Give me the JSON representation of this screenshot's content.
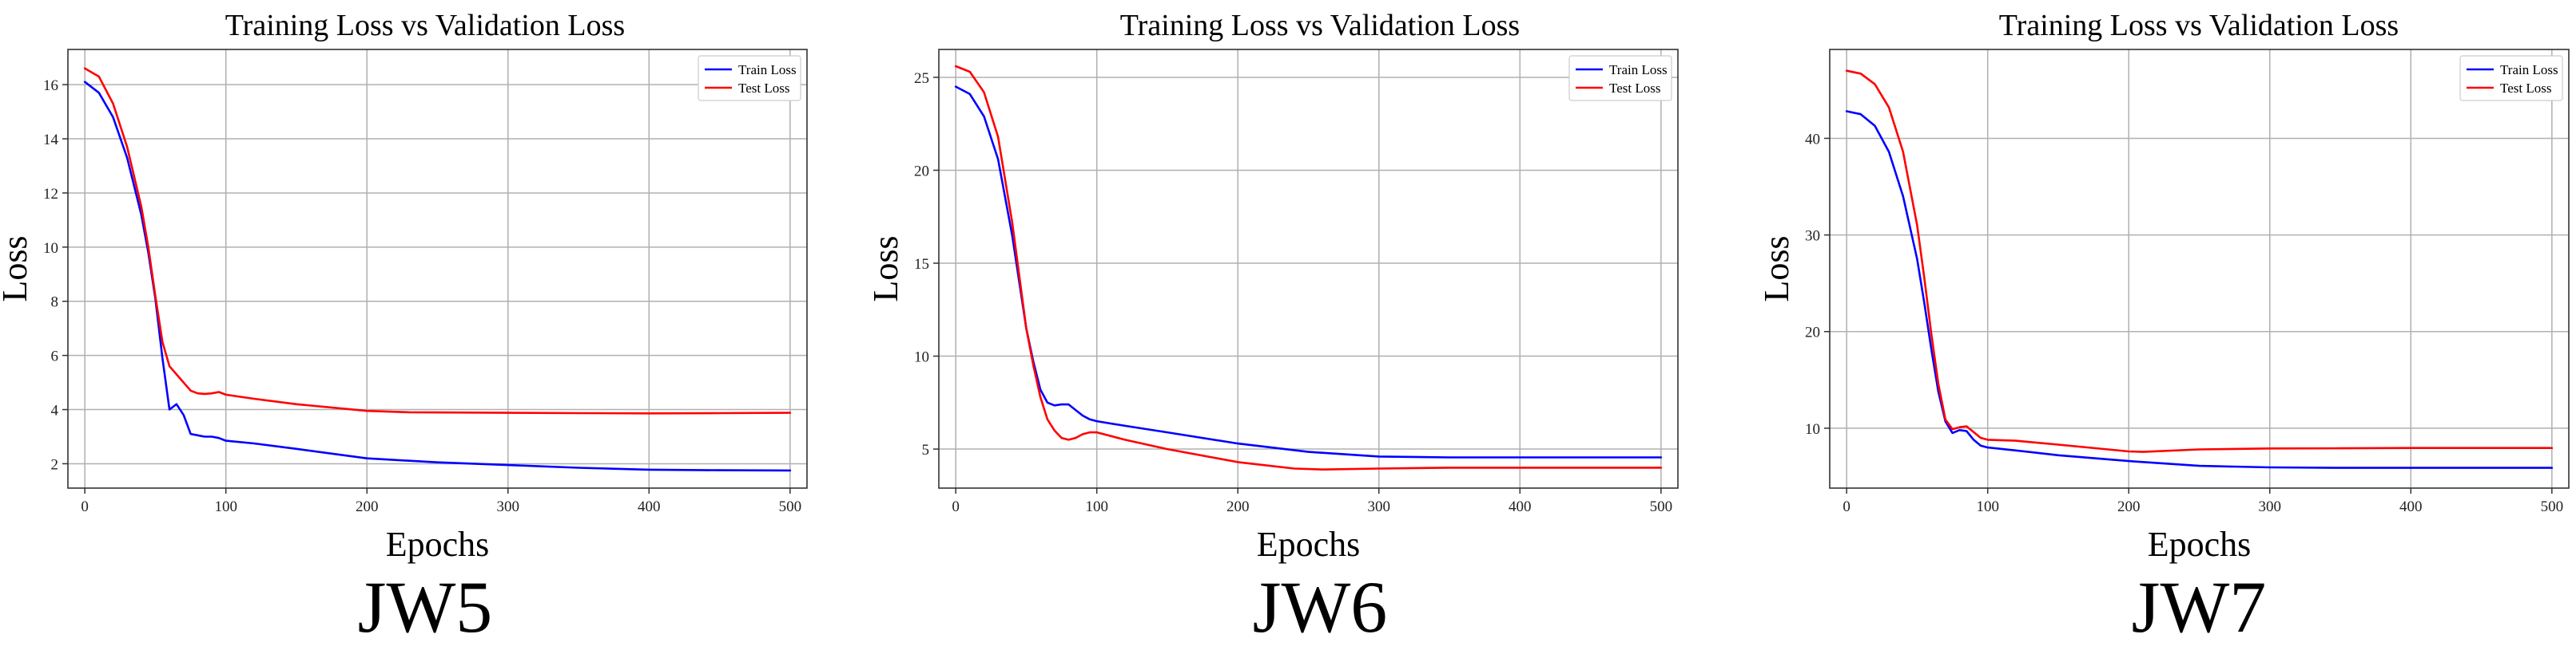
{
  "chart_data": [
    {
      "type": "line",
      "title": "Training Loss vs Validation Loss",
      "xlabel": "Epochs",
      "ylabel": "Loss",
      "caption": "JW5",
      "xlim": [
        -12,
        512
      ],
      "ylim": [
        1.1,
        17.3
      ],
      "xticks": [
        0,
        100,
        200,
        300,
        400,
        500
      ],
      "yticks": [
        2,
        4,
        6,
        8,
        10,
        12,
        14,
        16
      ],
      "grid": true,
      "legend_position": "top-right",
      "series": [
        {
          "name": "Train Loss",
          "color": "#0000ff",
          "x": [
            0,
            10,
            20,
            30,
            40,
            45,
            50,
            55,
            60,
            65,
            70,
            75,
            80,
            85,
            90,
            95,
            100,
            120,
            150,
            200,
            250,
            300,
            350,
            400,
            450,
            500
          ],
          "y": [
            16.1,
            15.7,
            14.8,
            13.3,
            11.2,
            9.8,
            8.1,
            5.9,
            4.0,
            4.2,
            3.8,
            3.1,
            3.05,
            3.0,
            3.0,
            2.95,
            2.85,
            2.75,
            2.55,
            2.2,
            2.05,
            1.95,
            1.85,
            1.78,
            1.76,
            1.75
          ]
        },
        {
          "name": "Test Loss",
          "color": "#ff0000",
          "x": [
            0,
            10,
            20,
            30,
            40,
            45,
            50,
            55,
            60,
            65,
            70,
            75,
            80,
            85,
            90,
            95,
            100,
            120,
            150,
            200,
            230,
            300,
            350,
            400,
            450,
            500
          ],
          "y": [
            16.6,
            16.3,
            15.3,
            13.7,
            11.5,
            10.0,
            8.2,
            6.5,
            5.6,
            5.3,
            5.0,
            4.7,
            4.6,
            4.58,
            4.6,
            4.65,
            4.55,
            4.4,
            4.2,
            3.95,
            3.9,
            3.88,
            3.87,
            3.86,
            3.87,
            3.88
          ]
        }
      ]
    },
    {
      "type": "line",
      "title": "Training Loss vs Validation Loss",
      "xlabel": "Epochs",
      "ylabel": "Loss",
      "caption": "JW6",
      "xlim": [
        -12,
        512
      ],
      "ylim": [
        2.9,
        26.5
      ],
      "xticks": [
        0,
        100,
        200,
        300,
        400,
        500
      ],
      "yticks": [
        5,
        10,
        15,
        20,
        25
      ],
      "grid": true,
      "legend_position": "top-right",
      "series": [
        {
          "name": "Train Loss",
          "color": "#0000ff",
          "x": [
            0,
            10,
            20,
            30,
            40,
            50,
            55,
            60,
            65,
            70,
            75,
            80,
            85,
            90,
            95,
            100,
            120,
            150,
            200,
            250,
            300,
            350,
            400,
            450,
            500
          ],
          "y": [
            24.5,
            24.1,
            22.9,
            20.6,
            16.5,
            11.5,
            9.7,
            8.2,
            7.5,
            7.35,
            7.4,
            7.4,
            7.1,
            6.8,
            6.6,
            6.5,
            6.25,
            5.9,
            5.3,
            4.85,
            4.6,
            4.55,
            4.55,
            4.55,
            4.55
          ]
        },
        {
          "name": "Test Loss",
          "color": "#ff0000",
          "x": [
            0,
            10,
            20,
            30,
            40,
            50,
            55,
            60,
            65,
            70,
            75,
            80,
            85,
            90,
            95,
            100,
            120,
            150,
            200,
            240,
            260,
            300,
            350,
            400,
            450,
            500
          ],
          "y": [
            25.6,
            25.3,
            24.2,
            21.8,
            17.2,
            11.5,
            9.5,
            7.8,
            6.6,
            6.0,
            5.6,
            5.5,
            5.6,
            5.8,
            5.9,
            5.9,
            5.5,
            5.0,
            4.3,
            3.95,
            3.9,
            3.95,
            4.0,
            4.0,
            4.0,
            4.0
          ]
        }
      ]
    },
    {
      "type": "line",
      "title": "Training Loss vs Validation Loss",
      "xlabel": "Epochs",
      "ylabel": "Loss",
      "caption": "JW7",
      "xlim": [
        -12,
        512
      ],
      "ylim": [
        3.8,
        49.2
      ],
      "xticks": [
        0,
        100,
        200,
        300,
        400,
        500
      ],
      "yticks": [
        10,
        20,
        30,
        40
      ],
      "grid": true,
      "legend_position": "top-right",
      "series": [
        {
          "name": "Train Loss",
          "color": "#0000ff",
          "x": [
            0,
            10,
            20,
            30,
            40,
            50,
            55,
            60,
            65,
            70,
            75,
            80,
            85,
            90,
            95,
            100,
            120,
            150,
            200,
            250,
            300,
            350,
            400,
            450,
            500
          ],
          "y": [
            42.8,
            42.5,
            41.3,
            38.6,
            34.0,
            27.5,
            23.0,
            18.2,
            13.8,
            10.7,
            9.5,
            9.8,
            9.7,
            8.8,
            8.2,
            8.0,
            7.7,
            7.2,
            6.6,
            6.1,
            5.95,
            5.9,
            5.9,
            5.9,
            5.9
          ]
        },
        {
          "name": "Test Loss",
          "color": "#ff0000",
          "x": [
            0,
            10,
            20,
            30,
            40,
            50,
            55,
            60,
            65,
            70,
            75,
            80,
            85,
            90,
            95,
            100,
            120,
            150,
            200,
            210,
            250,
            300,
            350,
            400,
            450,
            500
          ],
          "y": [
            47.0,
            46.7,
            45.6,
            43.2,
            38.6,
            31.0,
            25.6,
            19.8,
            14.6,
            10.9,
            9.9,
            10.1,
            10.2,
            9.6,
            9.0,
            8.8,
            8.7,
            8.3,
            7.6,
            7.55,
            7.8,
            7.9,
            7.92,
            7.95,
            7.95,
            7.95
          ]
        }
      ]
    }
  ]
}
